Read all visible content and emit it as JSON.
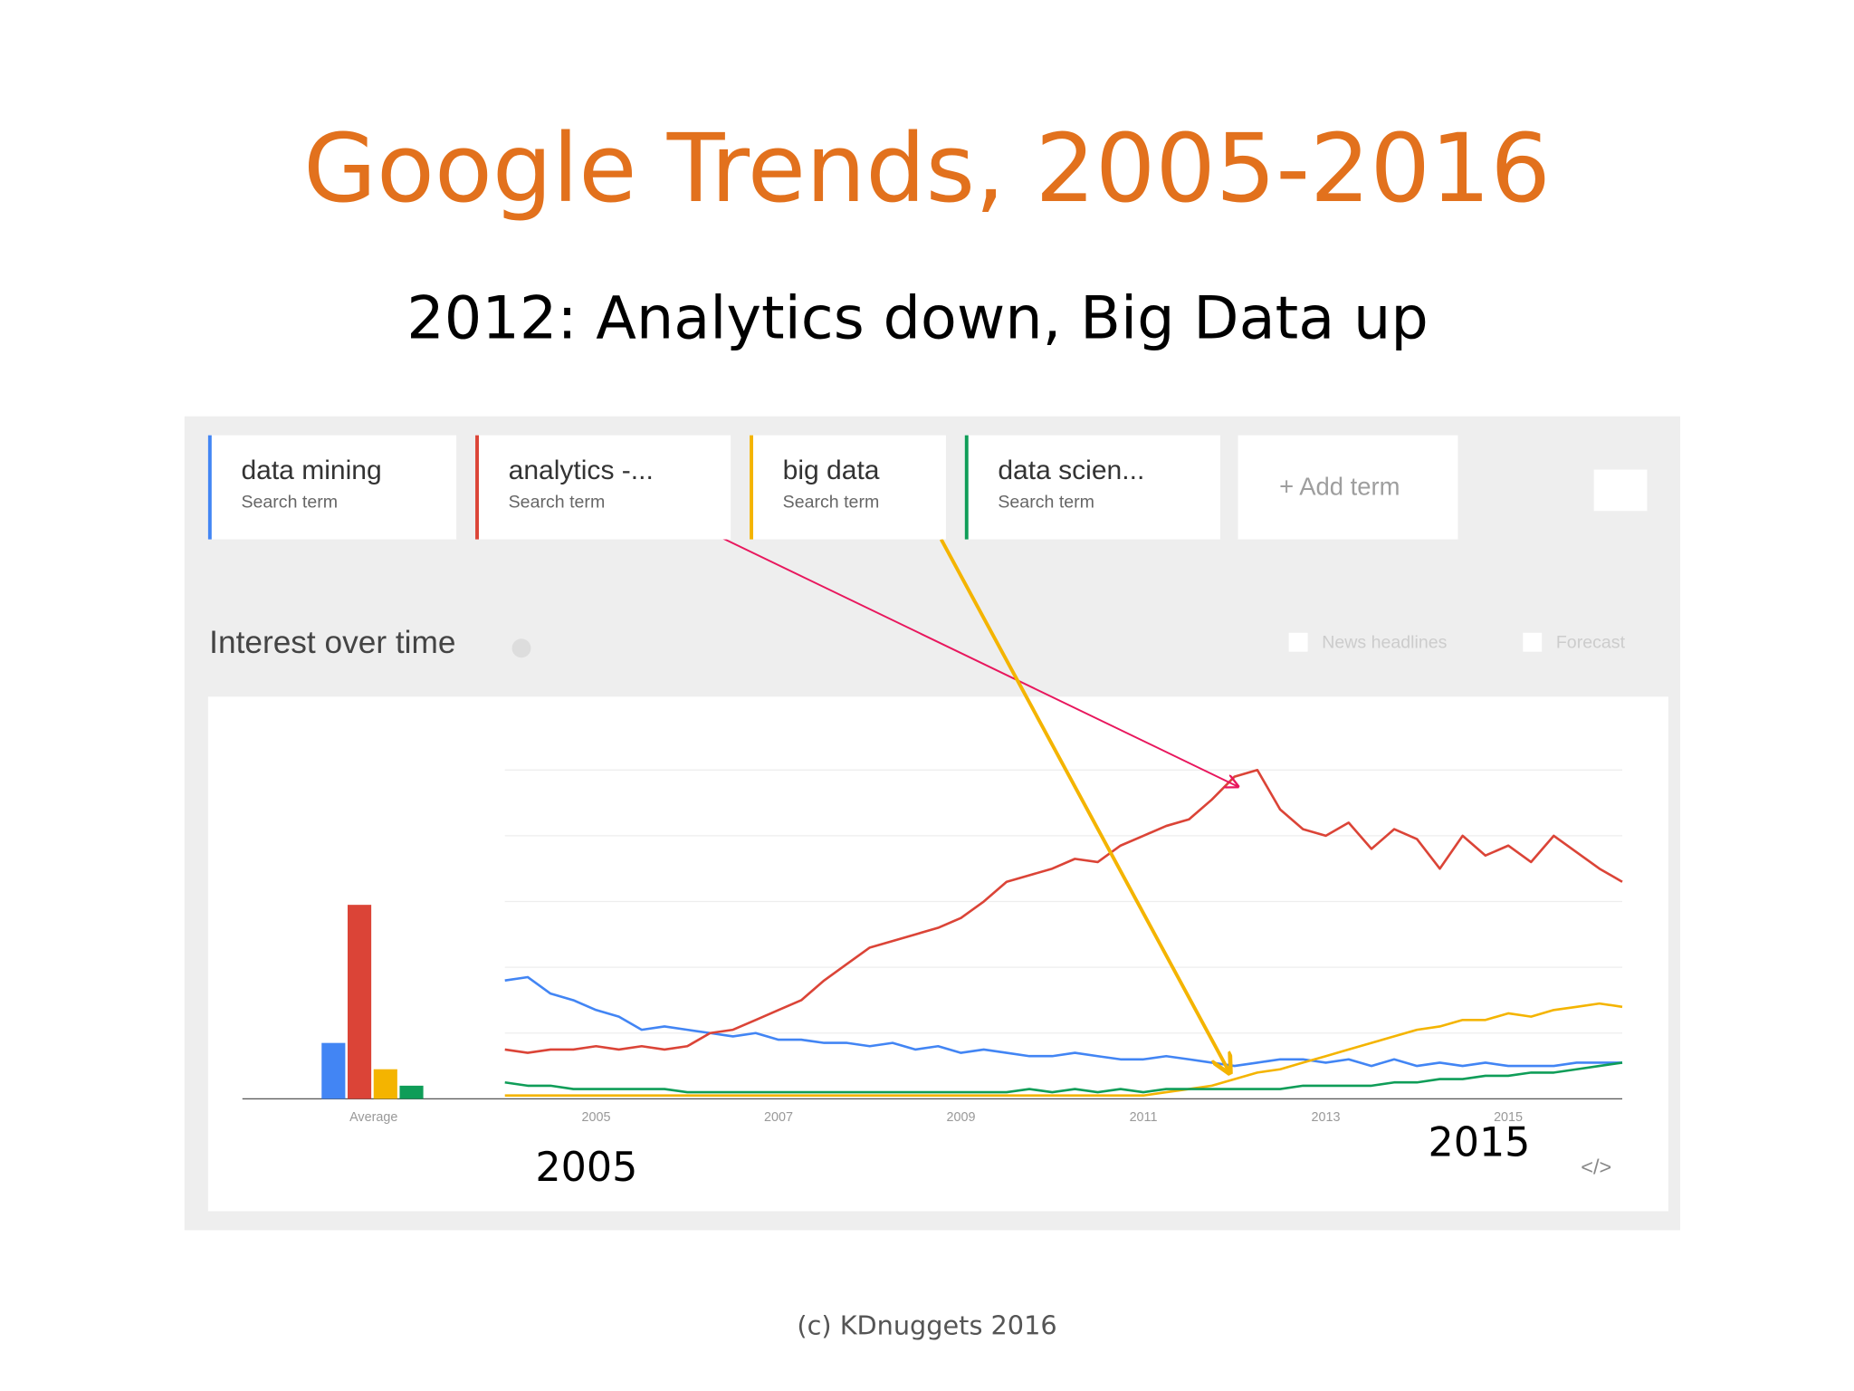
{
  "slide": {
    "title": "Google Trends, 2005-2016",
    "subtitle": "2012: Analytics down, Big Data up",
    "footer": "(c) KDnuggets 2016"
  },
  "trends_ui": {
    "search_term_label": "Search term",
    "add_term": "+ Add term",
    "section_title": "Interest over time",
    "news_headlines": "News headlines",
    "forecast": "Forecast"
  },
  "chart_data": {
    "type": "line",
    "x": [
      2004,
      2004.25,
      2004.5,
      2004.75,
      2005,
      2005.25,
      2005.5,
      2005.75,
      2006,
      2006.25,
      2006.5,
      2006.75,
      2007,
      2007.25,
      2007.5,
      2007.75,
      2008,
      2008.25,
      2008.5,
      2008.75,
      2009,
      2009.25,
      2009.5,
      2009.75,
      2010,
      2010.25,
      2010.5,
      2010.75,
      2011,
      2011.25,
      2011.5,
      2011.75,
      2012,
      2012.25,
      2012.5,
      2012.75,
      2013,
      2013.25,
      2013.5,
      2013.75,
      2014,
      2014.25,
      2014.5,
      2014.75,
      2015,
      2015.25,
      2015.5,
      2015.75,
      2016,
      2016.25
    ],
    "xlim": [
      2004,
      2016.25
    ],
    "xticks": [
      2005,
      2007,
      2009,
      2011,
      2013,
      2015
    ],
    "ylim": [
      0,
      100
    ],
    "yticks": [
      0,
      20,
      40,
      60,
      80,
      100
    ],
    "grid": true,
    "series": [
      {
        "name": "data mining",
        "color": "#4285f4",
        "values": [
          36,
          37,
          32,
          30,
          27,
          25,
          21,
          22,
          21,
          20,
          19,
          20,
          18,
          18,
          17,
          17,
          16,
          17,
          15,
          16,
          14,
          15,
          14,
          13,
          13,
          14,
          13,
          12,
          12,
          13,
          12,
          11,
          10,
          11,
          12,
          12,
          11,
          12,
          10,
          12,
          10,
          11,
          10,
          11,
          10,
          10,
          10,
          11,
          11,
          11
        ]
      },
      {
        "name": "analytics -...",
        "color": "#db4437",
        "values": [
          15,
          14,
          15,
          15,
          16,
          15,
          16,
          15,
          16,
          20,
          21,
          24,
          27,
          30,
          36,
          41,
          46,
          48,
          50,
          52,
          55,
          60,
          66,
          68,
          70,
          73,
          72,
          77,
          80,
          83,
          85,
          91,
          98,
          100,
          88,
          82,
          80,
          84,
          76,
          82,
          79,
          70,
          80,
          74,
          77,
          72,
          80,
          75,
          70,
          66
        ]
      },
      {
        "name": "big data",
        "color": "#f4b400",
        "values": [
          1,
          1,
          1,
          1,
          1,
          1,
          1,
          1,
          1,
          1,
          1,
          1,
          1,
          1,
          1,
          1,
          1,
          1,
          1,
          1,
          1,
          1,
          1,
          1,
          1,
          1,
          1,
          1,
          1,
          2,
          3,
          4,
          6,
          8,
          9,
          11,
          13,
          15,
          17,
          19,
          21,
          22,
          24,
          24,
          26,
          25,
          27,
          28,
          29,
          28
        ]
      },
      {
        "name": "data scien...",
        "color": "#0f9d58",
        "values": [
          5,
          4,
          4,
          3,
          3,
          3,
          3,
          3,
          2,
          2,
          2,
          2,
          2,
          2,
          2,
          2,
          2,
          2,
          2,
          2,
          2,
          2,
          2,
          3,
          2,
          3,
          2,
          3,
          2,
          3,
          3,
          3,
          3,
          3,
          3,
          4,
          4,
          4,
          4,
          5,
          5,
          6,
          6,
          7,
          7,
          8,
          8,
          9,
          10,
          11
        ]
      }
    ],
    "average": {
      "label": "Average",
      "values": [
        17,
        59,
        9,
        4
      ]
    },
    "annotations": [
      "2005",
      "2015"
    ]
  }
}
